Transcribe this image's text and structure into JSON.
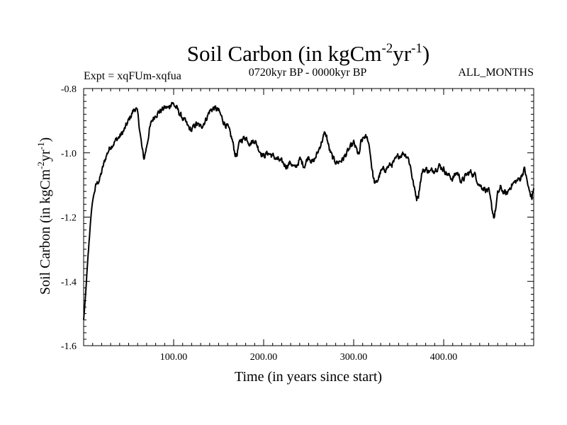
{
  "chart_data": {
    "type": "line",
    "title_main": "Soil Carbon (in kgCm",
    "title_sup1": "-2",
    "title_mid": "yr",
    "title_sup2": "-1",
    "title_end": ")",
    "expt_label": "Expt = xqFUm-xqfua",
    "period_label": "0720kyr BP - 0000kyr BP",
    "months_label": "ALL_MONTHS",
    "xlabel": "Time (in years since start)",
    "ylabel_main": "Soil Carbon (in kgCm",
    "ylabel_sup1": "-2",
    "ylabel_mid": "yr",
    "ylabel_sup2": "-1",
    "ylabel_end": ")",
    "xlim": [
      0,
      500
    ],
    "ylim": [
      -1.6,
      -0.8
    ],
    "x_ticks": [
      100,
      200,
      300,
      400
    ],
    "x_tick_labels": [
      "100.00",
      "200.00",
      "300.00",
      "400.00"
    ],
    "y_ticks": [
      -1.6,
      -1.4,
      -1.2,
      -1.0,
      -0.8
    ],
    "y_tick_labels": [
      "-1.6",
      "-1.4",
      "-1.2",
      "-1.0",
      "-0.8"
    ],
    "series": [
      {
        "name": "Soil Carbon",
        "x": [
          0,
          2,
          4,
          6,
          8,
          10,
          12,
          14,
          16,
          18,
          20,
          22,
          25,
          28,
          30,
          33,
          36,
          40,
          45,
          50,
          55,
          58,
          60,
          62,
          65,
          67,
          70,
          73,
          76,
          80,
          85,
          90,
          95,
          98,
          100,
          103,
          107,
          112,
          116,
          120,
          125,
          130,
          135,
          140,
          145,
          150,
          155,
          160,
          165,
          168,
          170,
          172,
          175,
          180,
          185,
          190,
          195,
          200,
          205,
          210,
          215,
          220,
          225,
          230,
          235,
          240,
          245,
          250,
          255,
          260,
          265,
          268,
          270,
          273,
          277,
          282,
          288,
          295,
          300,
          303,
          306,
          308,
          312,
          316,
          318,
          320,
          322,
          324,
          326,
          330,
          335,
          340,
          345,
          350,
          355,
          360,
          363,
          366,
          368,
          370,
          372,
          374,
          376,
          380,
          385,
          390,
          395,
          400,
          405,
          410,
          415,
          420,
          425,
          430,
          435,
          440,
          445,
          450,
          452,
          454,
          456,
          458,
          460,
          463,
          466,
          470,
          475,
          480,
          485,
          488,
          490,
          492,
          495,
          498,
          500
        ],
        "values": [
          -1.52,
          -1.45,
          -1.36,
          -1.28,
          -1.2,
          -1.15,
          -1.12,
          -1.1,
          -1.09,
          -1.08,
          -1.06,
          -1.04,
          -1.01,
          -0.99,
          -0.98,
          -0.97,
          -0.96,
          -0.95,
          -0.93,
          -0.9,
          -0.87,
          -0.86,
          -0.88,
          -0.92,
          -0.99,
          -1.02,
          -0.98,
          -0.93,
          -0.9,
          -0.88,
          -0.87,
          -0.86,
          -0.86,
          -0.84,
          -0.85,
          -0.86,
          -0.88,
          -0.9,
          -0.92,
          -0.93,
          -0.91,
          -0.92,
          -0.9,
          -0.87,
          -0.86,
          -0.87,
          -0.9,
          -0.92,
          -0.96,
          -1.0,
          -1.01,
          -0.98,
          -0.96,
          -0.95,
          -0.97,
          -0.96,
          -0.99,
          -1.01,
          -1.0,
          -1.01,
          -1.02,
          -1.03,
          -1.04,
          -1.03,
          -1.05,
          -1.02,
          -1.04,
          -1.01,
          -1.03,
          -1.0,
          -0.96,
          -0.94,
          -0.95,
          -0.99,
          -1.02,
          -1.03,
          -1.02,
          -0.99,
          -0.97,
          -0.99,
          -1.01,
          -0.97,
          -0.95,
          -0.96,
          -0.99,
          -1.04,
          -1.08,
          -1.1,
          -1.09,
          -1.06,
          -1.05,
          -1.04,
          -1.03,
          -1.01,
          -1.0,
          -1.01,
          -1.04,
          -1.09,
          -1.12,
          -1.14,
          -1.13,
          -1.09,
          -1.06,
          -1.05,
          -1.06,
          -1.05,
          -1.04,
          -1.05,
          -1.07,
          -1.08,
          -1.06,
          -1.09,
          -1.07,
          -1.06,
          -1.07,
          -1.1,
          -1.11,
          -1.12,
          -1.15,
          -1.18,
          -1.2,
          -1.17,
          -1.13,
          -1.11,
          -1.12,
          -1.13,
          -1.1,
          -1.09,
          -1.08,
          -1.06,
          -1.05,
          -1.08,
          -1.12,
          -1.14,
          -1.11
        ]
      }
    ]
  }
}
